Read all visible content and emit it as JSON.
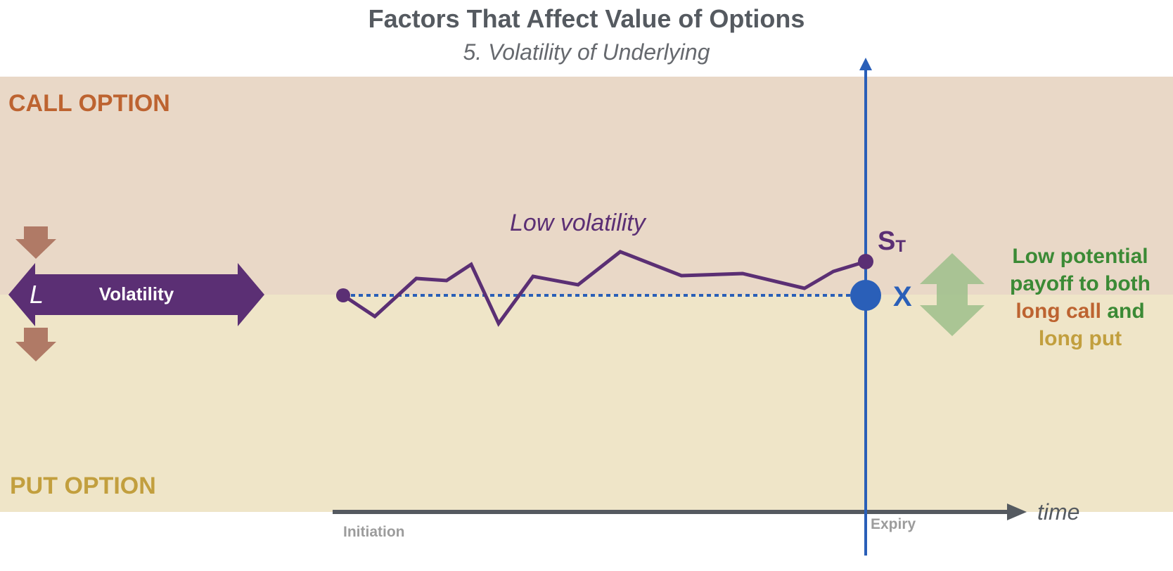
{
  "title": "Factors That Affect Value of Options",
  "subtitle": "5. Volatility of Underlying",
  "regions": {
    "call_label": "CALL OPTION",
    "put_label": "PUT OPTION"
  },
  "volatility_arrow": {
    "letter": "L",
    "label": "Volatility"
  },
  "path": {
    "label": "Low volatility"
  },
  "markers": {
    "st_main": "S",
    "st_sub": "T",
    "x": "X"
  },
  "payoff": {
    "line1": "Low potential",
    "line2": "payoff to both",
    "line3_call": "long call",
    "line3_and": " and",
    "line4_put": "long put"
  },
  "axis": {
    "time_label": "time",
    "initiation_label": "Initiation",
    "expiry_label": "Expiry"
  },
  "colors": {
    "call_band": "#e9d8c7",
    "put_band": "#efe5c8",
    "call_text": "#bd6330",
    "put_text": "#c29f3e",
    "path": "#5b2f74",
    "axis_vertical": "#2a5fb8",
    "axis_horizontal": "#555a60",
    "payoff_green": "#3b8a35",
    "double_arrow": "#9dc08b",
    "down_arrows": "#b07a66"
  }
}
